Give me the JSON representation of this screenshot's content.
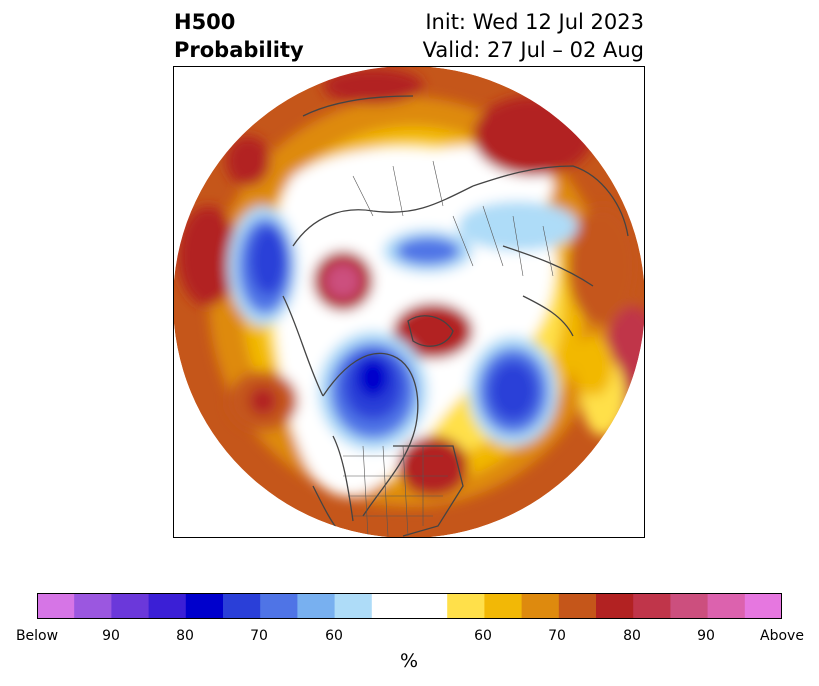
{
  "title": {
    "line1_left": "H500",
    "line2_left": "Probability",
    "line1_right": "Init: Wed 12 Jul 2023",
    "line2_right": "Valid: 27 Jul – 02 Aug"
  },
  "colorbar": {
    "tick_labels": [
      "Below",
      "90",
      "80",
      "70",
      "60",
      "60",
      "70",
      "80",
      "90",
      "Above"
    ],
    "unit_label": "%",
    "below_colors": [
      "#d675e6",
      "#9b57e0",
      "#6b38da",
      "#3b1fd6",
      "#0000cc",
      "#2a3fd8",
      "#4f74e6",
      "#78b0f0",
      "#aedcf8"
    ],
    "neutral_color": "#ffffff",
    "above_colors": [
      "#ffe04a",
      "#f2b806",
      "#de8a0e",
      "#c5561a",
      "#b22222",
      "#c0354a",
      "#cc4f7e",
      "#dc62ae",
      "#e677e0"
    ]
  },
  "map": {
    "projection": "polar stereographic, north pole",
    "background_color": "#c5561a"
  }
}
